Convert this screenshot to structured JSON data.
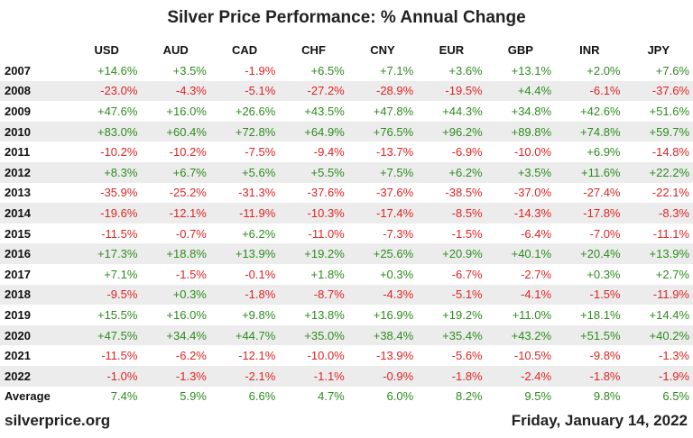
{
  "colors": {
    "positive": "#2e8b1f",
    "negative": "#e02424",
    "stripe": "#ececec"
  },
  "chart_data": {
    "type": "table",
    "title": "Silver Price Performance: % Annual Change",
    "columns": [
      "USD",
      "AUD",
      "CAD",
      "CHF",
      "CNY",
      "EUR",
      "GBP",
      "INR",
      "JPY"
    ],
    "rows": [
      {
        "label": "2007",
        "values": [
          "+14.6%",
          "+3.5%",
          "-1.9%",
          "+6.5%",
          "+7.1%",
          "+3.6%",
          "+13.1%",
          "+2.0%",
          "+7.6%"
        ]
      },
      {
        "label": "2008",
        "values": [
          "-23.0%",
          "-4.3%",
          "-5.1%",
          "-27.2%",
          "-28.9%",
          "-19.5%",
          "+4.4%",
          "-6.1%",
          "-37.6%"
        ]
      },
      {
        "label": "2009",
        "values": [
          "+47.6%",
          "+16.0%",
          "+26.6%",
          "+43.5%",
          "+47.8%",
          "+44.3%",
          "+34.8%",
          "+42.6%",
          "+51.6%"
        ]
      },
      {
        "label": "2010",
        "values": [
          "+83.0%",
          "+60.4%",
          "+72.8%",
          "+64.9%",
          "+76.5%",
          "+96.2%",
          "+89.8%",
          "+74.8%",
          "+59.7%"
        ]
      },
      {
        "label": "2011",
        "values": [
          "-10.2%",
          "-10.2%",
          "-7.5%",
          "-9.4%",
          "-13.7%",
          "-6.9%",
          "-10.0%",
          "+6.9%",
          "-14.8%"
        ]
      },
      {
        "label": "2012",
        "values": [
          "+8.3%",
          "+6.7%",
          "+5.6%",
          "+5.5%",
          "+7.5%",
          "+6.2%",
          "+3.5%",
          "+11.6%",
          "+22.2%"
        ]
      },
      {
        "label": "2013",
        "values": [
          "-35.9%",
          "-25.2%",
          "-31.3%",
          "-37.6%",
          "-37.6%",
          "-38.5%",
          "-37.0%",
          "-27.4%",
          "-22.1%"
        ]
      },
      {
        "label": "2014",
        "values": [
          "-19.6%",
          "-12.1%",
          "-11.9%",
          "-10.3%",
          "-17.4%",
          "-8.5%",
          "-14.3%",
          "-17.8%",
          "-8.3%"
        ]
      },
      {
        "label": "2015",
        "values": [
          "-11.5%",
          "-0.7%",
          "+6.2%",
          "-11.0%",
          "-7.3%",
          "-1.5%",
          "-6.4%",
          "-7.0%",
          "-11.1%"
        ]
      },
      {
        "label": "2016",
        "values": [
          "+17.3%",
          "+18.8%",
          "+13.9%",
          "+19.2%",
          "+25.6%",
          "+20.9%",
          "+40.1%",
          "+20.4%",
          "+13.9%"
        ]
      },
      {
        "label": "2017",
        "values": [
          "+7.1%",
          "-1.5%",
          "-0.1%",
          "+1.8%",
          "+0.3%",
          "-6.7%",
          "-2.7%",
          "+0.3%",
          "+2.7%"
        ]
      },
      {
        "label": "2018",
        "values": [
          "-9.5%",
          "+0.3%",
          "-1.8%",
          "-8.7%",
          "-4.3%",
          "-5.1%",
          "-4.1%",
          "-1.5%",
          "-11.9%"
        ]
      },
      {
        "label": "2019",
        "values": [
          "+15.5%",
          "+16.0%",
          "+9.8%",
          "+13.8%",
          "+16.9%",
          "+19.2%",
          "+11.0%",
          "+18.1%",
          "+14.4%"
        ]
      },
      {
        "label": "2020",
        "values": [
          "+47.5%",
          "+34.4%",
          "+44.7%",
          "+35.0%",
          "+38.4%",
          "+35.4%",
          "+43.2%",
          "+51.5%",
          "+40.2%"
        ]
      },
      {
        "label": "2021",
        "values": [
          "-11.5%",
          "-6.2%",
          "-12.1%",
          "-10.0%",
          "-13.9%",
          "-5.6%",
          "-10.5%",
          "-9.8%",
          "-1.3%"
        ]
      },
      {
        "label": "2022",
        "values": [
          "-1.0%",
          "-1.3%",
          "-2.1%",
          "-1.1%",
          "-0.9%",
          "-1.8%",
          "-2.4%",
          "-1.8%",
          "-1.9%"
        ]
      },
      {
        "label": "Average",
        "values": [
          "7.4%",
          "5.9%",
          "6.6%",
          "4.7%",
          "6.0%",
          "8.2%",
          "9.5%",
          "9.8%",
          "6.5%"
        ]
      }
    ]
  },
  "footer": {
    "source": "silverprice.org",
    "date": "Friday, January 14, 2022"
  }
}
